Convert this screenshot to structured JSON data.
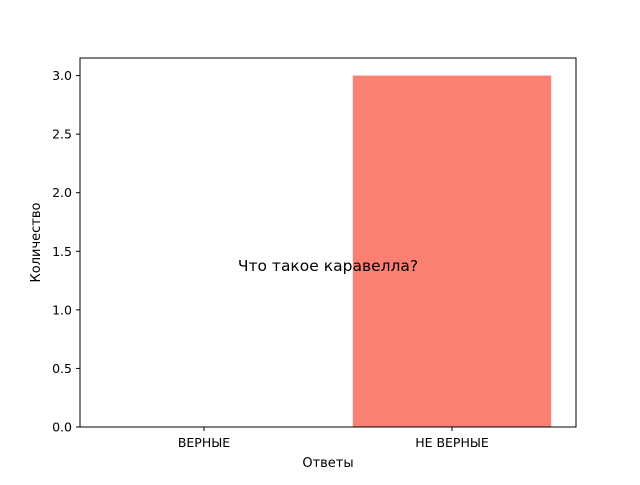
{
  "chart_data": {
    "type": "bar",
    "categories": [
      "ВЕРНЫЕ",
      "НЕ ВЕРНЫЕ"
    ],
    "values": [
      0,
      3
    ],
    "bar_colors": [
      "#fa8072",
      "#fa8072"
    ],
    "title": "",
    "annotation": "Что такое каравелла?",
    "xlabel": "Ответы",
    "ylabel": "Количество",
    "ylim": [
      0,
      3.15
    ],
    "yticks": [
      0.0,
      0.5,
      1.0,
      1.5,
      2.0,
      2.5,
      3.0
    ],
    "ytick_labels": [
      "0.0",
      "0.5",
      "1.0",
      "1.5",
      "2.0",
      "2.5",
      "3.0"
    ],
    "grid": false,
    "legend": "none"
  }
}
